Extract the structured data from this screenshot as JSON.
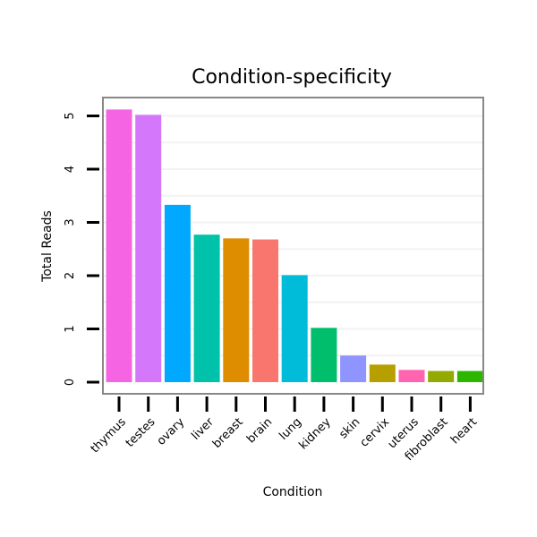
{
  "chart_data": {
    "type": "bar",
    "title": "Condition-specificity",
    "xlabel": "Condition",
    "ylabel": "Total Reads",
    "ylim": [
      -0.2,
      5.3
    ],
    "yticks": [
      0,
      1,
      2,
      3,
      4,
      5
    ],
    "grid": true,
    "legend": "none",
    "categories": [
      "thymus",
      "testes",
      "ovary",
      "liver",
      "breast",
      "brain",
      "lung",
      "kidney",
      "skin",
      "cervix",
      "uterus",
      "fibroblast",
      "heart"
    ],
    "values": [
      5.12,
      5.02,
      3.33,
      2.77,
      2.7,
      2.68,
      2.01,
      1.02,
      0.5,
      0.33,
      0.23,
      0.21,
      0.21
    ],
    "colors": [
      "#F565E3",
      "#D477FB",
      "#00A9FF",
      "#00C1A9",
      "#DE8C00",
      "#F8766D",
      "#00BCD8",
      "#00BE6C",
      "#8F94FF",
      "#B79F00",
      "#FF64B0",
      "#93AA00",
      "#2DB600"
    ]
  }
}
